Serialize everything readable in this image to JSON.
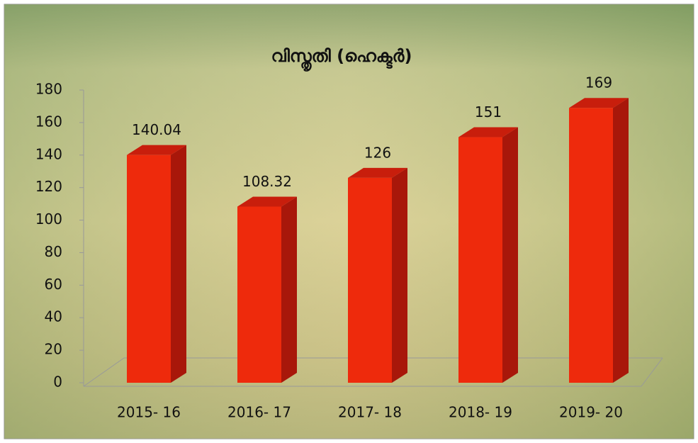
{
  "chart_data": {
    "type": "bar",
    "title": "വിസ്തൃതി (ഹെക്ടർ)",
    "categories": [
      "2015- 16",
      "2016- 17",
      "2017- 18",
      "2018- 19",
      "2019- 20"
    ],
    "values": [
      140.04,
      108.32,
      126,
      151,
      169
    ],
    "color": "#ee2a0c",
    "ylim": [
      0,
      180
    ],
    "yticks": [
      0,
      20,
      40,
      60,
      80,
      100,
      120,
      140,
      160,
      180
    ]
  }
}
